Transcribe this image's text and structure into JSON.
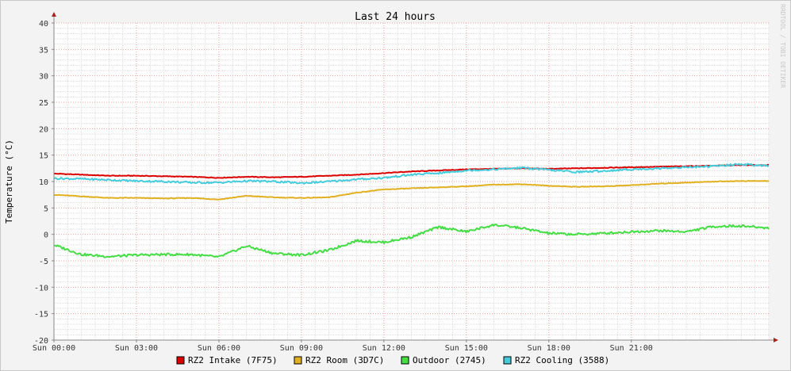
{
  "chart_data": {
    "type": "line",
    "title": "Last 24 hours",
    "ylabel": "Temperature (°C)",
    "xlabel": "",
    "watermark": "RRDTOOL / TOBI OETIKER",
    "ylim": [
      -20,
      40
    ],
    "yticks": [
      40,
      35,
      30,
      25,
      20,
      15,
      10,
      5,
      0,
      -5,
      -10,
      -15,
      -20
    ],
    "xlim": [
      0,
      26
    ],
    "xticks": [
      {
        "hour": 0,
        "label": "Sun 00:00"
      },
      {
        "hour": 3,
        "label": "Sun 03:00"
      },
      {
        "hour": 6,
        "label": "Sun 06:00"
      },
      {
        "hour": 9,
        "label": "Sun 09:00"
      },
      {
        "hour": 12,
        "label": "Sun 12:00"
      },
      {
        "hour": 15,
        "label": "Sun 15:00"
      },
      {
        "hour": 18,
        "label": "Sun 18:00"
      },
      {
        "hour": 21,
        "label": "Sun 21:00"
      }
    ],
    "x": [
      0,
      1,
      2,
      3,
      4,
      5,
      6,
      7,
      8,
      9,
      10,
      11,
      12,
      13,
      14,
      15,
      16,
      17,
      18,
      19,
      20,
      21,
      22,
      23,
      24,
      25,
      26
    ],
    "series": [
      {
        "name": "RZ2 Intake (7F75)",
        "color": "#dd0000",
        "values": [
          11.5,
          11.3,
          11.1,
          11.1,
          11.0,
          10.9,
          10.7,
          10.9,
          10.8,
          10.9,
          11.1,
          11.3,
          11.6,
          11.9,
          12.1,
          12.3,
          12.4,
          12.5,
          12.4,
          12.5,
          12.6,
          12.7,
          12.8,
          12.9,
          13.0,
          13.1,
          13.1
        ]
      },
      {
        "name": "RZ2 Room (3D7C)",
        "color": "#e0b020",
        "values": [
          7.5,
          7.2,
          6.9,
          6.9,
          6.8,
          6.9,
          6.6,
          7.3,
          7.0,
          6.9,
          7.0,
          7.9,
          8.5,
          8.7,
          8.9,
          9.1,
          9.4,
          9.5,
          9.2,
          9.0,
          9.1,
          9.3,
          9.6,
          9.8,
          10.0,
          10.1,
          10.1
        ]
      },
      {
        "name": "Outdoor (2745)",
        "color": "#44dd44",
        "values": [
          -2.0,
          -3.8,
          -4.2,
          -3.9,
          -3.8,
          -3.8,
          -4.3,
          -2.2,
          -3.6,
          -3.9,
          -3.0,
          -1.2,
          -1.5,
          -0.5,
          1.4,
          0.5,
          1.8,
          1.2,
          0.2,
          0.0,
          0.2,
          0.5,
          0.7,
          0.5,
          1.5,
          1.6,
          1.2
        ]
      },
      {
        "name": "RZ2 Cooling (3588)",
        "color": "#44ccdd",
        "values": [
          10.6,
          10.5,
          10.3,
          10.1,
          10.0,
          9.8,
          9.8,
          10.1,
          10.0,
          9.7,
          10.0,
          10.4,
          10.7,
          11.3,
          11.6,
          12.1,
          12.3,
          12.6,
          12.2,
          11.8,
          12.0,
          12.3,
          12.5,
          12.7,
          12.9,
          13.3,
          12.9
        ]
      }
    ],
    "legend_position": "bottom-center",
    "grid": true
  }
}
